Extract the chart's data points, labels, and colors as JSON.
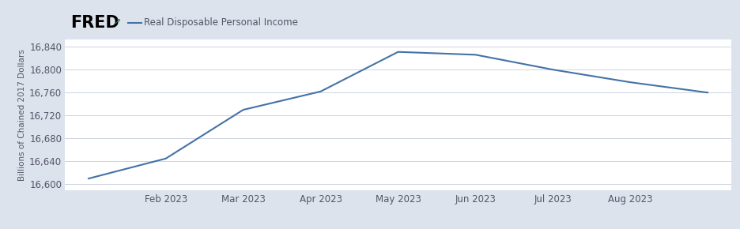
{
  "x_data": [
    0,
    1,
    2,
    3,
    4,
    5,
    6,
    7,
    8
  ],
  "y_values": [
    16610,
    16645,
    16730,
    16762,
    16831,
    16826,
    16800,
    16778,
    16760
  ],
  "x_tick_positions": [
    1,
    2,
    3,
    4,
    5,
    6,
    7
  ],
  "x_labels": [
    "Feb 2023",
    "Mar 2023",
    "Apr 2023",
    "May 2023",
    "Jun 2023",
    "Jul 2023",
    "Aug 2023"
  ],
  "ylim": [
    16590,
    16852
  ],
  "yticks": [
    16600,
    16640,
    16680,
    16720,
    16760,
    16800,
    16840
  ],
  "xlim": [
    -0.3,
    8.3
  ],
  "line_color": "#4472a8",
  "line_width": 1.5,
  "fig_bg_color": "#dce3ed",
  "header_bg_color": "#dce3ed",
  "plot_bg_color": "#ffffff",
  "ylabel": "Billions of Chained 2017 Dollars",
  "legend_label": "Real Disposable Personal Income",
  "fred_text": "FRED",
  "grid_color": "#c5cdd9",
  "tick_label_color": "#555566",
  "ylabel_color": "#555566",
  "tick_fontsize": 8.5,
  "ylabel_fontsize": 7.5,
  "legend_fontsize": 8.5,
  "fred_fontsize": 15
}
